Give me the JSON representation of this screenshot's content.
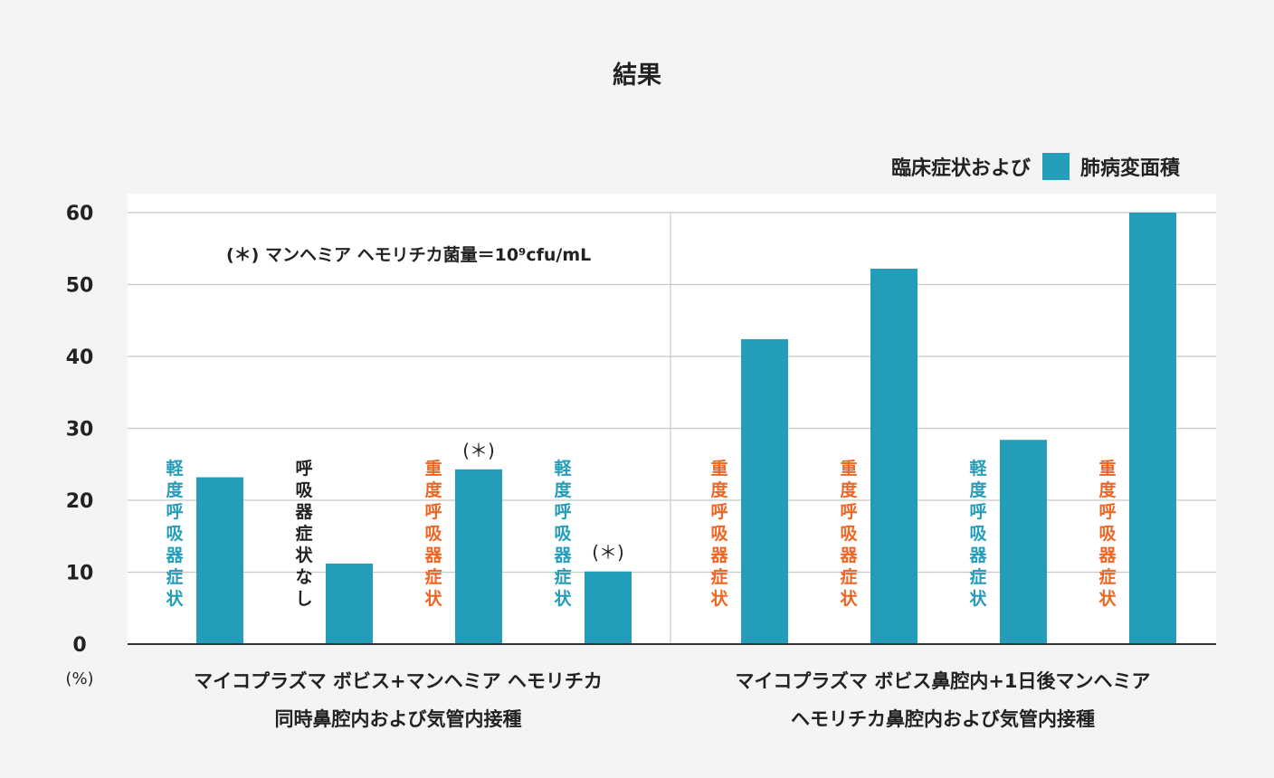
{
  "chart_data": {
    "type": "bar",
    "title": "結果",
    "legend": {
      "prefix": "臨床症状および",
      "label": "肺病変面積",
      "placement": "top-right"
    },
    "y_unit": "(%)",
    "ylim": [
      0,
      60
    ],
    "yticks": [
      "0",
      "10",
      "20",
      "30",
      "40",
      "50",
      "60"
    ],
    "grid": true,
    "note": "(＊) マンヘミア ヘモリチカ菌量＝10⁹cfu/mL",
    "groups": [
      {
        "label_lines": [
          "マイコプラズマ ボビス+マンヘミア ヘモリチカ",
          "同時鼻腔内および気管内接種"
        ]
      },
      {
        "label_lines": [
          "マイコプラズマ ボビス鼻腔内+1日後マンヘミア",
          "ヘモリチカ鼻腔内および気管内接種"
        ]
      }
    ],
    "series": [
      {
        "values": [
          23.2,
          11.2,
          24.3,
          10.1,
          42.4,
          52.2,
          28.4,
          60
        ]
      }
    ],
    "bars": [
      {
        "group": 0,
        "value": 23.2,
        "annotation": "軽度呼吸器症状",
        "annotation_color": "#249dba",
        "star": ""
      },
      {
        "group": 0,
        "value": 11.2,
        "annotation": "呼吸器症状なし",
        "annotation_color": "#222222",
        "star": ""
      },
      {
        "group": 0,
        "value": 24.3,
        "annotation": "重度呼吸器症状",
        "annotation_color": "#f16522",
        "star": "(＊)"
      },
      {
        "group": 0,
        "value": 10.1,
        "annotation": "軽度呼吸器症状",
        "annotation_color": "#249dba",
        "star": "(＊)"
      },
      {
        "group": 1,
        "value": 42.4,
        "annotation": "重度呼吸器症状",
        "annotation_color": "#f16522",
        "star": ""
      },
      {
        "group": 1,
        "value": 52.2,
        "annotation": "重度呼吸器症状",
        "annotation_color": "#f16522",
        "star": ""
      },
      {
        "group": 1,
        "value": 28.4,
        "annotation": "軽度呼吸器症状",
        "annotation_color": "#249dba",
        "star": ""
      },
      {
        "group": 1,
        "value": 60,
        "annotation": "重度呼吸器症状",
        "annotation_color": "#f16522",
        "star": ""
      }
    ],
    "colors": {
      "bar": "#249dba",
      "plot_background": "#ffffff",
      "page_background": "#f4f4f4",
      "grid": "#c8c8c8",
      "axis": "#333333",
      "mild": "#249dba",
      "severe": "#f16522",
      "none": "#222222"
    }
  }
}
